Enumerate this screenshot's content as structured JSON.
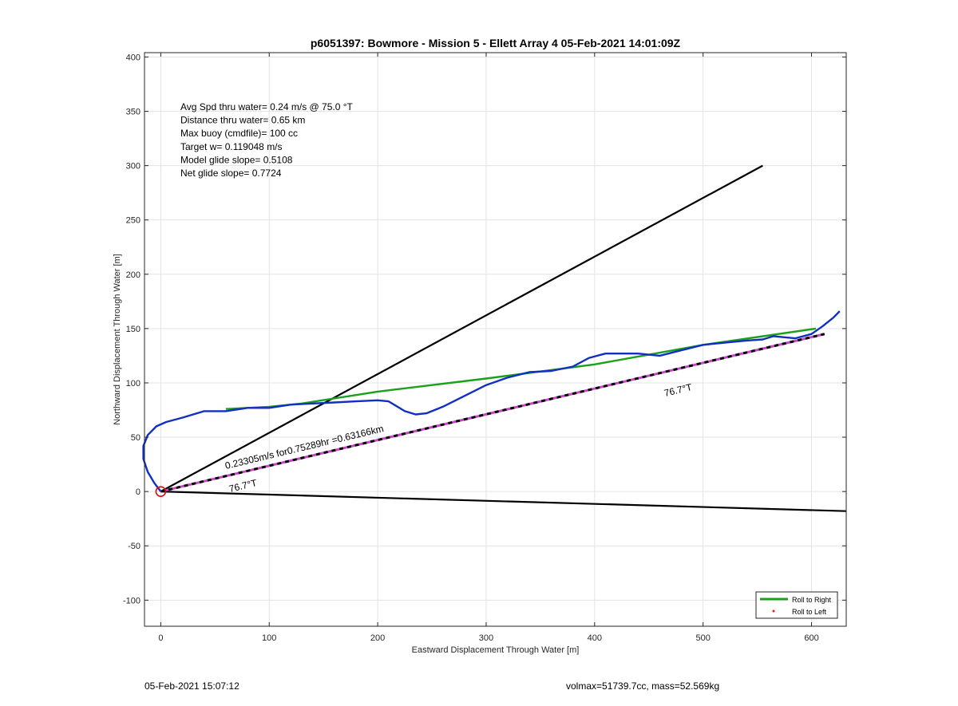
{
  "chart_data": {
    "type": "line",
    "title": "p6051397: Bowmore - Mission 5 - Ellett Array 4 05-Feb-2021 14:01:09Z",
    "xlabel": "Eastward Displacement Through Water [m]",
    "ylabel": "Northward Displacement Through Water [m]",
    "xlim": [
      -15,
      632
    ],
    "ylim": [
      -124,
      404
    ],
    "xticks": [
      0,
      100,
      200,
      300,
      400,
      500,
      600
    ],
    "yticks": [
      -100,
      -50,
      0,
      50,
      100,
      150,
      200,
      250,
      300,
      350,
      400
    ],
    "grid": true,
    "legend_position": "bottom-right",
    "legend": [
      {
        "label": "Roll to Right",
        "color": "#1aa11a",
        "marker": "line"
      },
      {
        "label": "Roll to Left",
        "color": "#e0201a",
        "marker": "dot"
      }
    ],
    "annotations": [
      "Avg Spd thru water=  0.24 m/s @  75.0 °T",
      "Distance thru water=  0.65 km",
      "Max buoy (cmdfile)= 100 cc",
      "Target w= 0.119048 m/s",
      "Model glide slope= 0.5108",
      "Net glide slope= 0.7724"
    ],
    "line_labels": {
      "speed": "0.23305m/s for0.75289hr =0.63166km",
      "heading_near": "76.7°T",
      "heading_far": "76.7°T"
    },
    "series": [
      {
        "name": "Roll to Right",
        "color": "#1aa11a",
        "x": [
          60,
          100,
          130,
          200,
          300,
          400,
          500,
          604
        ],
        "y": [
          76,
          78,
          81,
          92,
          104,
          117,
          135,
          150
        ]
      },
      {
        "color": "#1030c0",
        "x": [
          0,
          -6,
          -12,
          -16,
          -16,
          -12,
          -4,
          5,
          20,
          40,
          60,
          80,
          100,
          120,
          140,
          160,
          180,
          200,
          210,
          215,
          225,
          235,
          245,
          260,
          280,
          300,
          320,
          340,
          360,
          380,
          395,
          410,
          420,
          440,
          460,
          480,
          500,
          520,
          540,
          555,
          565,
          575,
          585,
          600,
          610,
          620,
          626
        ],
        "y": [
          0,
          8,
          18,
          30,
          42,
          52,
          60,
          64,
          68,
          74,
          74,
          77,
          77,
          80,
          81,
          82,
          83,
          84,
          83,
          80,
          74,
          71,
          72,
          78,
          88,
          98,
          105,
          110,
          111,
          115,
          123,
          127,
          127,
          127,
          125,
          130,
          135,
          137,
          139,
          140,
          143,
          142,
          141,
          145,
          152,
          160,
          166
        ]
      },
      {
        "color": "#000000",
        "x": [
          0,
          555
        ],
        "y": [
          0,
          300
        ]
      },
      {
        "color": "#000000",
        "x": [
          0,
          632
        ],
        "y": [
          0,
          -18
        ]
      },
      {
        "color": "#cc44cc",
        "dashed_over": "#000000",
        "x": [
          0,
          612
        ],
        "y": [
          0,
          145
        ]
      }
    ],
    "start_marker": {
      "x": 0,
      "y": 0,
      "color": "#d01010"
    }
  },
  "footer": {
    "left": "05-Feb-2021 15:07:12",
    "right": "volmax=51739.7cc, mass=52.569kg"
  }
}
